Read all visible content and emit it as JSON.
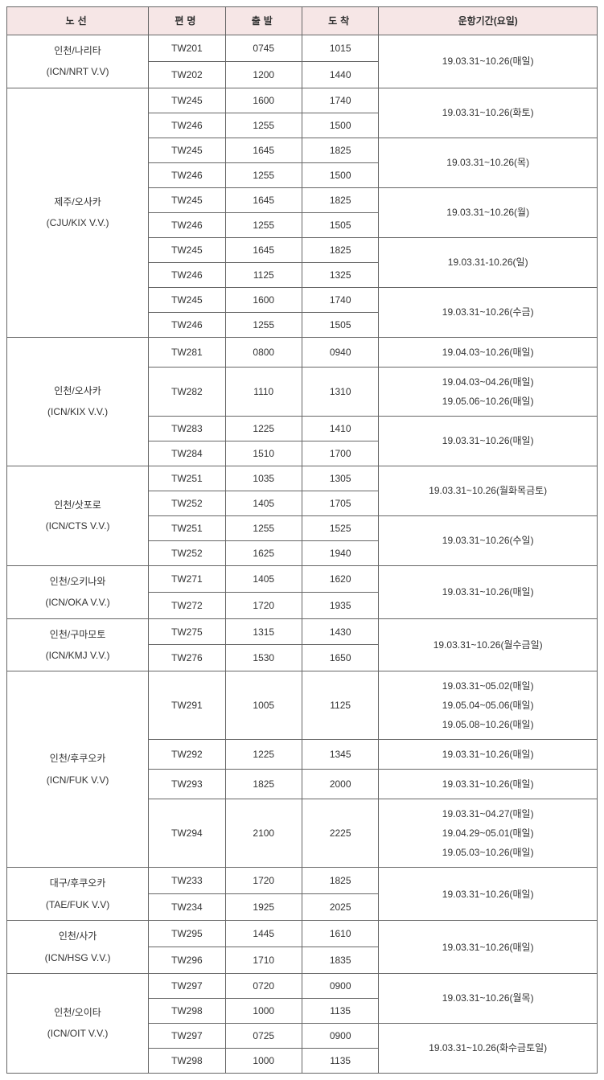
{
  "headers": {
    "route": "노선",
    "flight": "편명",
    "departure": "출발",
    "arrival": "도착",
    "period": "운항기간(요일)"
  },
  "routes": [
    {
      "name_kr": "인천/나리타",
      "name_en": "(ICN/NRT V.V)",
      "groups": [
        {
          "period": [
            "19.03.31~10.26(매일)"
          ],
          "flights": [
            {
              "no": "TW201",
              "dep": "0745",
              "arr": "1015"
            },
            {
              "no": "TW202",
              "dep": "1200",
              "arr": "1440"
            }
          ]
        }
      ]
    },
    {
      "name_kr": "제주/오사카",
      "name_en": "(CJU/KIX V.V.)",
      "groups": [
        {
          "period": [
            "19.03.31~10.26(화토)"
          ],
          "flights": [
            {
              "no": "TW245",
              "dep": "1600",
              "arr": "1740"
            },
            {
              "no": "TW246",
              "dep": "1255",
              "arr": "1500"
            }
          ]
        },
        {
          "period": [
            "19.03.31~10.26(목)"
          ],
          "flights": [
            {
              "no": "TW245",
              "dep": "1645",
              "arr": "1825"
            },
            {
              "no": "TW246",
              "dep": "1255",
              "arr": "1500"
            }
          ]
        },
        {
          "period": [
            "19.03.31~10.26(월)"
          ],
          "flights": [
            {
              "no": "TW245",
              "dep": "1645",
              "arr": "1825"
            },
            {
              "no": "TW246",
              "dep": "1255",
              "arr": "1505"
            }
          ]
        },
        {
          "period": [
            "19.03.31-10.26(일)"
          ],
          "flights": [
            {
              "no": "TW245",
              "dep": "1645",
              "arr": "1825"
            },
            {
              "no": "TW246",
              "dep": "1125",
              "arr": "1325"
            }
          ]
        },
        {
          "period": [
            "19.03.31~10.26(수금)"
          ],
          "flights": [
            {
              "no": "TW245",
              "dep": "1600",
              "arr": "1740"
            },
            {
              "no": "TW246",
              "dep": "1255",
              "arr": "1505"
            }
          ]
        }
      ]
    },
    {
      "name_kr": "인천/오사카",
      "name_en": "(ICN/KIX V.V.)",
      "groups": [
        {
          "period": [
            "19.04.03~10.26(매일)"
          ],
          "flights": [
            {
              "no": "TW281",
              "dep": "0800",
              "arr": "0940"
            }
          ]
        },
        {
          "period": [
            "19.04.03~04.26(매일)",
            "19.05.06~10.26(매일)"
          ],
          "flights": [
            {
              "no": "TW282",
              "dep": "1110",
              "arr": "1310"
            }
          ]
        },
        {
          "period": [
            "19.03.31~10.26(매일)"
          ],
          "flights": [
            {
              "no": "TW283",
              "dep": "1225",
              "arr": "1410"
            },
            {
              "no": "TW284",
              "dep": "1510",
              "arr": "1700"
            }
          ]
        }
      ]
    },
    {
      "name_kr": "인천/삿포로",
      "name_en": "(ICN/CTS V.V.)",
      "groups": [
        {
          "period": [
            "19.03.31~10.26(월화목금토)"
          ],
          "flights": [
            {
              "no": "TW251",
              "dep": "1035",
              "arr": "1305"
            },
            {
              "no": "TW252",
              "dep": "1405",
              "arr": "1705"
            }
          ]
        },
        {
          "period": [
            "19.03.31~10.26(수일)"
          ],
          "flights": [
            {
              "no": "TW251",
              "dep": "1255",
              "arr": "1525"
            },
            {
              "no": "TW252",
              "dep": "1625",
              "arr": "1940"
            }
          ]
        }
      ]
    },
    {
      "name_kr": "인천/오키나와",
      "name_en": "(ICN/OKA V.V.)",
      "groups": [
        {
          "period": [
            "19.03.31~10.26(매일)"
          ],
          "flights": [
            {
              "no": "TW271",
              "dep": "1405",
              "arr": "1620"
            },
            {
              "no": "TW272",
              "dep": "1720",
              "arr": "1935"
            }
          ]
        }
      ]
    },
    {
      "name_kr": "인천/구마모토",
      "name_en": "(ICN/KMJ V.V.)",
      "groups": [
        {
          "period": [
            "19.03.31~10.26(월수금일)"
          ],
          "flights": [
            {
              "no": "TW275",
              "dep": "1315",
              "arr": "1430"
            },
            {
              "no": "TW276",
              "dep": "1530",
              "arr": "1650"
            }
          ]
        }
      ]
    },
    {
      "name_kr": "인천/후쿠오카",
      "name_en": "(ICN/FUK V.V)",
      "groups": [
        {
          "period": [
            "19.03.31~05.02(매일)",
            "19.05.04~05.06(매일)",
            "19.05.08~10.26(매일)"
          ],
          "flights": [
            {
              "no": "TW291",
              "dep": "1005",
              "arr": "1125"
            }
          ]
        },
        {
          "period": [
            "19.03.31~10.26(매일)"
          ],
          "flights": [
            {
              "no": "TW292",
              "dep": "1225",
              "arr": "1345"
            }
          ]
        },
        {
          "period": [
            "19.03.31~10.26(매일)"
          ],
          "flights": [
            {
              "no": "TW293",
              "dep": "1825",
              "arr": "2000"
            }
          ]
        },
        {
          "period": [
            "19.03.31~04.27(매일)",
            "19.04.29~05.01(매일)",
            "19.05.03~10.26(매일)"
          ],
          "flights": [
            {
              "no": "TW294",
              "dep": "2100",
              "arr": "2225"
            }
          ]
        }
      ]
    },
    {
      "name_kr": "대구/후쿠오카",
      "name_en": "(TAE/FUK V.V)",
      "groups": [
        {
          "period": [
            "19.03.31~10.26(매일)"
          ],
          "flights": [
            {
              "no": "TW233",
              "dep": "1720",
              "arr": "1825"
            },
            {
              "no": "TW234",
              "dep": "1925",
              "arr": "2025"
            }
          ]
        }
      ]
    },
    {
      "name_kr": "인천/사가",
      "name_en": "(ICN/HSG V.V.)",
      "groups": [
        {
          "period": [
            "19.03.31~10.26(매일)"
          ],
          "flights": [
            {
              "no": "TW295",
              "dep": "1445",
              "arr": "1610"
            },
            {
              "no": "TW296",
              "dep": "1710",
              "arr": "1835"
            }
          ]
        }
      ]
    },
    {
      "name_kr": "인천/오이타",
      "name_en": "(ICN/OIT V.V.)",
      "groups": [
        {
          "period": [
            "19.03.31~10.26(월목)"
          ],
          "flights": [
            {
              "no": "TW297",
              "dep": "0720",
              "arr": "0900"
            },
            {
              "no": "TW298",
              "dep": "1000",
              "arr": "1135"
            }
          ]
        },
        {
          "period": [
            "19.03.31~10.26(화수금토일)"
          ],
          "flights": [
            {
              "no": "TW297",
              "dep": "0725",
              "arr": "0900"
            },
            {
              "no": "TW298",
              "dep": "1000",
              "arr": "1135"
            }
          ]
        }
      ]
    }
  ]
}
